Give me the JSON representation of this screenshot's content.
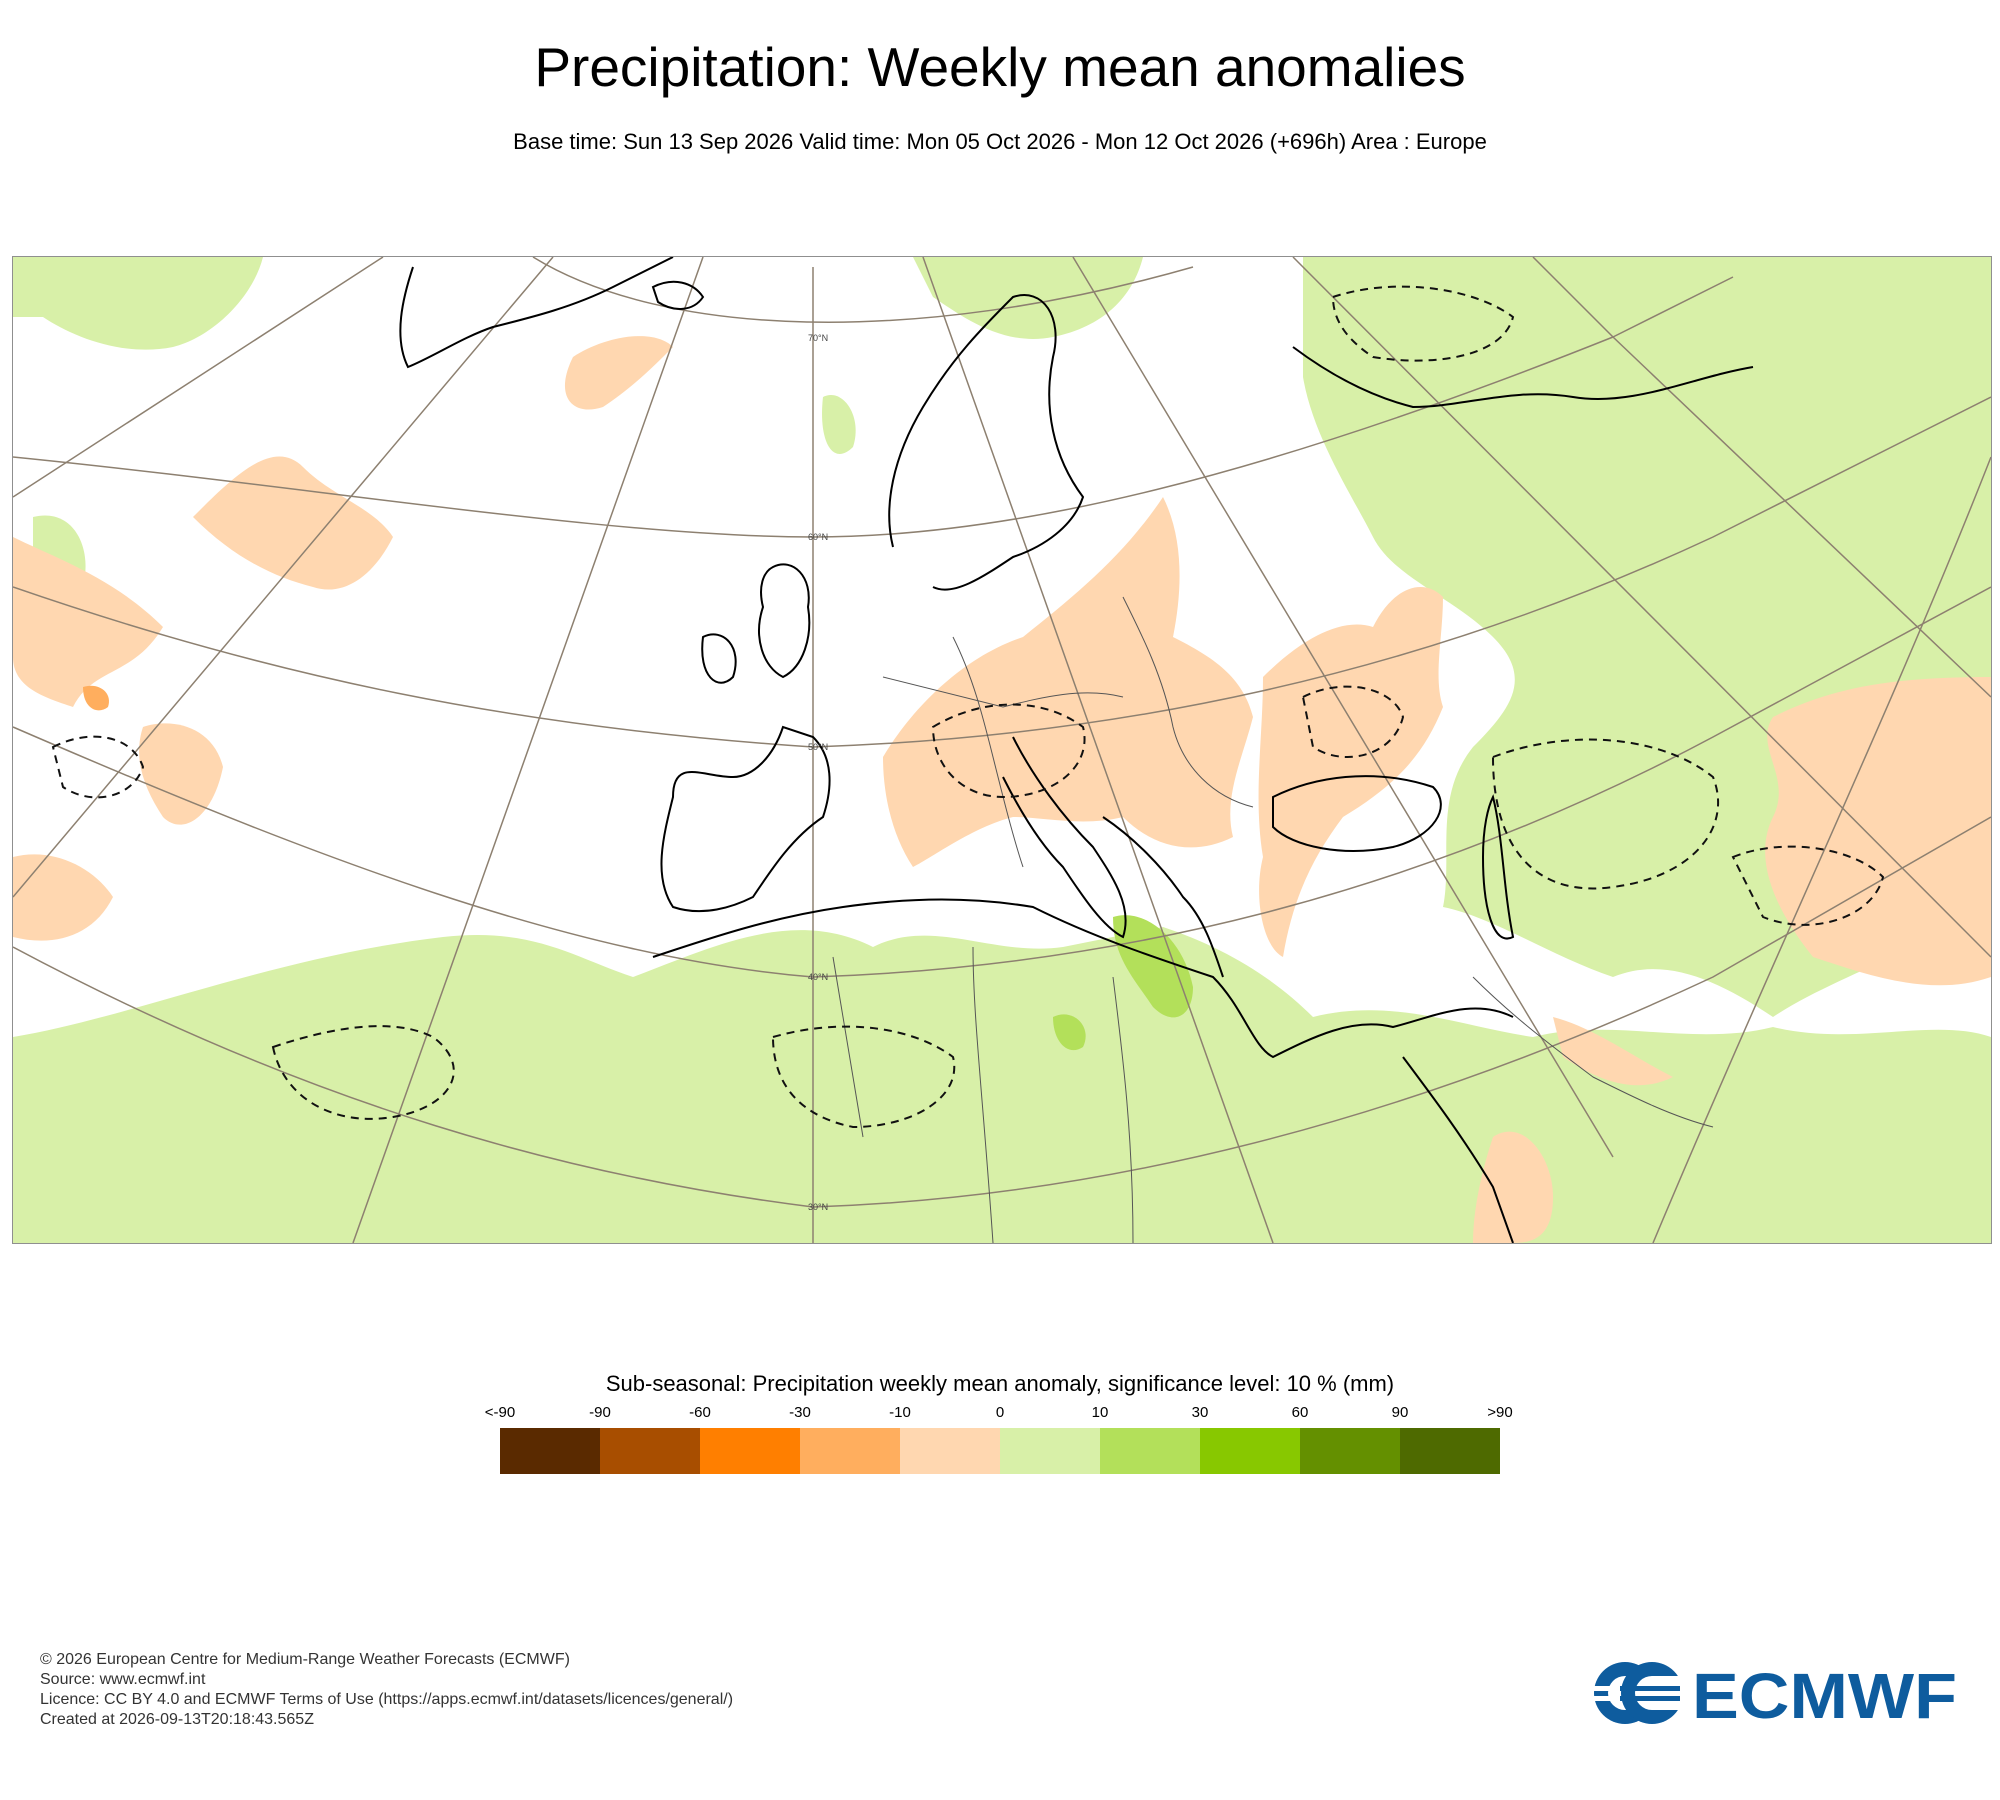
{
  "header": {
    "title": "Precipitation: Weekly mean anomalies",
    "subtitle": "Base time: Sun 13 Sep 2026 Valid time: Mon 05 Oct 2026 - Mon 12 Oct 2026 (+696h) Area : Europe"
  },
  "map": {
    "area": "Europe",
    "lat_labels": [
      "70°N",
      "60°N",
      "50°N",
      "40°N",
      "30°N"
    ]
  },
  "legend": {
    "title": "Sub-seasonal: Precipitation weekly mean anomaly, significance level: 10 % (mm)",
    "ticks": [
      "<-90",
      "-90",
      "-60",
      "-30",
      "-10",
      "0",
      "10",
      "30",
      "60",
      "90",
      ">90"
    ],
    "colors": [
      "#5a2a00",
      "#a84e00",
      "#ff7f00",
      "#ffae5e",
      "#ffd7b0",
      "#d8f0a8",
      "#b3e05a",
      "#88c800",
      "#649000",
      "#4e6a00"
    ]
  },
  "footer": {
    "copyright": "© 2026 European Centre for Medium-Range Weather Forecasts (ECMWF)",
    "source": "Source: www.ecmwf.int",
    "licence": "Licence: CC BY 4.0 and ECMWF Terms of Use (https://apps.ecmwf.int/datasets/licences/general/)",
    "created": "Created at 2026-09-13T20:18:43.565Z"
  },
  "logo": {
    "text": "ECMWF",
    "color": "#0e5c9e"
  }
}
